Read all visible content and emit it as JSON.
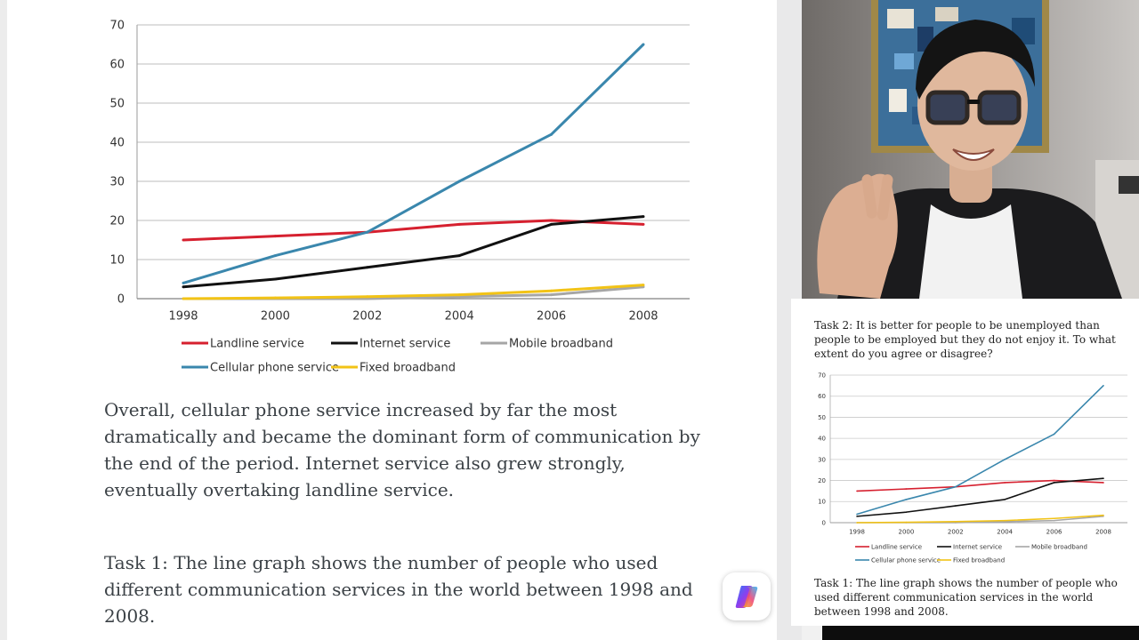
{
  "document": {
    "overall": "Overall, cellular phone service increased by far the most dramatically and became the dominant form of communication by the end of the period. Internet service also grew strongly, eventually overtaking landline service.",
    "task1": "Task 1: The line graph shows the number of people who used different communication services in the world between 1998 and 2008."
  },
  "side_panel": {
    "task2": "Task 2: It is better for people to be unemployed than people to be employed but they do not enjoy it. To what extent do you agree or disagree?",
    "task1": "Task 1: The line graph shows the number of people who used different communication services in the world between 1998 and 2008."
  },
  "colors": {
    "landline": "#d6202f",
    "internet": "#111111",
    "mobile": "#a6a6a6",
    "cellular": "#3a87ad",
    "fixed": "#f2c316",
    "grid": "#c9c9c9"
  },
  "icons": {
    "assistant_button": "copilot-icon"
  },
  "chart_data": [
    {
      "type": "line",
      "title": "",
      "xlabel": "",
      "ylabel": "",
      "x": [
        1998,
        2000,
        2002,
        2004,
        2006,
        2008
      ],
      "ylim": [
        0,
        70
      ],
      "yticks": [
        0,
        10,
        20,
        30,
        40,
        50,
        60,
        70
      ],
      "grid": true,
      "legend_position": "bottom",
      "series": [
        {
          "name": "Landline service",
          "values": [
            15,
            16,
            17,
            19,
            20,
            19
          ]
        },
        {
          "name": "Internet service",
          "values": [
            3,
            5,
            8,
            11,
            19,
            21
          ]
        },
        {
          "name": "Mobile broadband",
          "values": [
            0,
            0,
            0,
            0.5,
            1,
            3
          ]
        },
        {
          "name": "Cellular phone service",
          "values": [
            4,
            11,
            17,
            30,
            42,
            65
          ]
        },
        {
          "name": "Fixed broadband",
          "values": [
            0,
            0.2,
            0.5,
            1,
            2,
            3.5
          ]
        }
      ]
    },
    {
      "type": "line",
      "title": "",
      "xlabel": "",
      "ylabel": "",
      "x": [
        1998,
        2000,
        2002,
        2004,
        2006,
        2008
      ],
      "ylim": [
        0,
        70
      ],
      "yticks": [
        0,
        10,
        20,
        30,
        40,
        50,
        60,
        70
      ],
      "grid": true,
      "legend_position": "bottom",
      "series": [
        {
          "name": "Landline service",
          "values": [
            15,
            16,
            17,
            19,
            20,
            19
          ]
        },
        {
          "name": "Internet service",
          "values": [
            3,
            5,
            8,
            11,
            19,
            21
          ]
        },
        {
          "name": "Mobile broadband",
          "values": [
            0,
            0,
            0,
            0.5,
            1,
            3
          ]
        },
        {
          "name": "Cellular phone service",
          "values": [
            4,
            11,
            17,
            30,
            42,
            65
          ]
        },
        {
          "name": "Fixed broadband",
          "values": [
            0,
            0.2,
            0.5,
            1,
            2,
            3.5
          ]
        }
      ]
    }
  ]
}
